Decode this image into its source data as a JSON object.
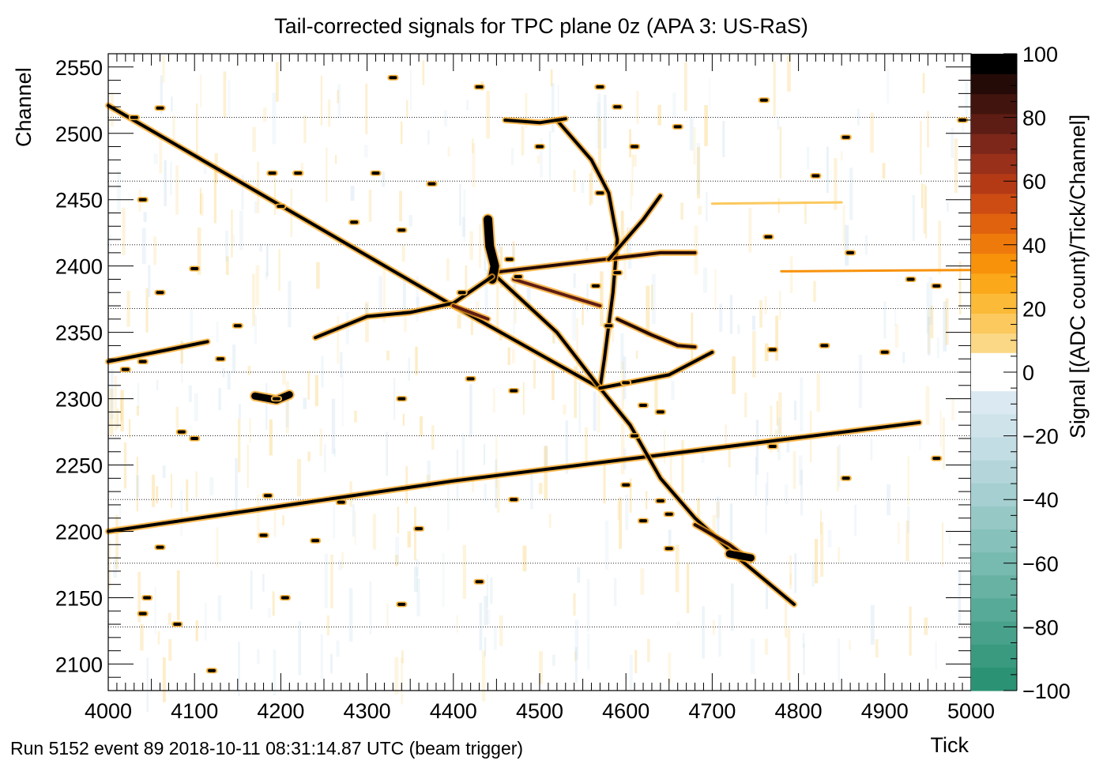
{
  "chart_data": {
    "type": "heatmap",
    "title": "Tail-corrected signals for TPC plane 0z (APA 3: US-RaS)",
    "xlabel": "Tick",
    "ylabel": "Channel",
    "zlabel": "Signal [(ADC count)/Tick/Channel]",
    "footer": "Run 5152 event 89 2018-10-11 08:31:14.87 UTC (beam trigger)",
    "xlim": [
      4000,
      5000
    ],
    "ylim": [
      2080,
      2560
    ],
    "zlim": [
      -100,
      100
    ],
    "x_ticks": [
      4000,
      4100,
      4200,
      4300,
      4400,
      4500,
      4600,
      4700,
      4800,
      4900,
      5000
    ],
    "y_ticks": [
      2100,
      2150,
      2200,
      2250,
      2300,
      2350,
      2400,
      2450,
      2500,
      2550
    ],
    "z_ticks": [
      -100,
      -80,
      -60,
      -40,
      -20,
      0,
      20,
      40,
      60,
      80,
      100
    ],
    "channel_boundaries": [
      2128,
      2176,
      2224,
      2272,
      2320,
      2368,
      2416,
      2464,
      2512
    ],
    "color_scale": {
      "positive": [
        "#fde8b0",
        "#fbd885",
        "#fbc95e",
        "#fbba38",
        "#fba81a",
        "#f8920b",
        "#ef7a0c",
        "#e0620f",
        "#cc4c13",
        "#b43a16",
        "#99301a",
        "#7c271a",
        "#5e1d14",
        "#41140d",
        "#250b07",
        "#000000"
      ],
      "negative": [
        "#dbe9f2",
        "#cfe3eb",
        "#c2dde3",
        "#b4d6da",
        "#a5cfd1",
        "#96c8c6",
        "#87c1bb",
        "#77baaf",
        "#67b2a3",
        "#57aa97",
        "#48a28b",
        "#399a7f",
        "#2b9273"
      ],
      "noise_positive": "#f8c54c",
      "noise_negative": "#bcd8ea"
    },
    "tracks": [
      {
        "points": [
          [
            4000,
            2521
          ],
          [
            4400,
            2370
          ],
          [
            4570,
            2308
          ]
        ],
        "intensity": 100
      },
      {
        "points": [
          [
            4000,
            2200
          ],
          [
            4400,
            2238
          ],
          [
            4940,
            2282
          ]
        ],
        "intensity": 100
      },
      {
        "points": [
          [
            4520,
            2510
          ],
          [
            4560,
            2480
          ],
          [
            4580,
            2455
          ],
          [
            4590,
            2420
          ],
          [
            4585,
            2380
          ],
          [
            4575,
            2330
          ],
          [
            4570,
            2308
          ]
        ],
        "intensity": 100
      },
      {
        "points": [
          [
            4570,
            2308
          ],
          [
            4605,
            2280
          ],
          [
            4640,
            2240
          ],
          [
            4680,
            2210
          ],
          [
            4730,
            2180
          ],
          [
            4795,
            2145
          ]
        ],
        "intensity": 100
      },
      {
        "points": [
          [
            4445,
            2395
          ],
          [
            4520,
            2350
          ],
          [
            4570,
            2308
          ]
        ],
        "intensity": 100
      },
      {
        "points": [
          [
            4445,
            2395
          ],
          [
            4640,
            2410
          ],
          [
            4680,
            2410
          ]
        ],
        "intensity": 90
      },
      {
        "points": [
          [
            4440,
            2435
          ],
          [
            4442,
            2415
          ],
          [
            4448,
            2400
          ],
          [
            4445,
            2390
          ]
        ],
        "intensity": 100,
        "width": 11
      },
      {
        "points": [
          [
            4445,
            2392
          ],
          [
            4400,
            2372
          ],
          [
            4350,
            2365
          ],
          [
            4300,
            2362
          ],
          [
            4240,
            2346
          ]
        ],
        "intensity": 100
      },
      {
        "points": [
          [
            4580,
            2405
          ],
          [
            4620,
            2435
          ],
          [
            4640,
            2453
          ]
        ],
        "intensity": 100
      },
      {
        "points": [
          [
            4570,
            2308
          ],
          [
            4650,
            2318
          ],
          [
            4700,
            2335
          ]
        ],
        "intensity": 100
      },
      {
        "points": [
          [
            4000,
            2328
          ],
          [
            4070,
            2337
          ],
          [
            4115,
            2343
          ]
        ],
        "intensity": 100
      },
      {
        "points": [
          [
            4460,
            2510
          ],
          [
            4500,
            2508
          ],
          [
            4530,
            2511
          ]
        ],
        "intensity": 100
      },
      {
        "points": [
          [
            4470,
            2390
          ],
          [
            4530,
            2378
          ],
          [
            4570,
            2370
          ]
        ],
        "intensity": 80
      },
      {
        "points": [
          [
            4590,
            2360
          ],
          [
            4630,
            2348
          ],
          [
            4660,
            2340
          ],
          [
            4680,
            2339
          ]
        ],
        "intensity": 90
      },
      {
        "points": [
          [
            4680,
            2205
          ],
          [
            4720,
            2190
          ],
          [
            4740,
            2180
          ]
        ],
        "intensity": 90
      },
      {
        "points": [
          [
            4720,
            2183
          ],
          [
            4745,
            2180
          ]
        ],
        "intensity": 100,
        "width": 9
      },
      {
        "points": [
          [
            4170,
            2302
          ],
          [
            4195,
            2299
          ],
          [
            4210,
            2303
          ]
        ],
        "intensity": 100,
        "width": 9
      },
      {
        "points": [
          [
            4400,
            2370
          ],
          [
            4440,
            2360
          ]
        ],
        "intensity": 80
      }
    ],
    "faint_tracks": [
      {
        "points": [
          [
            4780,
            2396
          ],
          [
            5000,
            2397
          ]
        ],
        "intensity": 35
      },
      {
        "points": [
          [
            4700,
            2447
          ],
          [
            4850,
            2448
          ]
        ],
        "intensity": 12
      }
    ],
    "blobs": [
      [
        4570,
        2535
      ],
      [
        4590,
        2520
      ],
      [
        4500,
        2490
      ],
      [
        4610,
        2490
      ],
      [
        4660,
        2505
      ],
      [
        4760,
        2525
      ],
      [
        4855,
        2497
      ],
      [
        4040,
        2450
      ],
      [
        4200,
        2445
      ],
      [
        4285,
        2433
      ],
      [
        4340,
        2427
      ],
      [
        4465,
        2405
      ],
      [
        4565,
        2385
      ],
      [
        4590,
        2395
      ],
      [
        4190,
        2470
      ],
      [
        4100,
        2398
      ],
      [
        4220,
        2470
      ],
      [
        4375,
        2462
      ],
      [
        4570,
        2455
      ],
      [
        4820,
        2468
      ],
      [
        4765,
        2422
      ],
      [
        4960,
        2385
      ],
      [
        4770,
        2337
      ],
      [
        4830,
        2340
      ],
      [
        4600,
        2312
      ],
      [
        4150,
        2355
      ],
      [
        4020,
        2322
      ],
      [
        4040,
        2328
      ],
      [
        4130,
        2330
      ],
      [
        4420,
        2315
      ],
      [
        4470,
        2306
      ],
      [
        4340,
        2300
      ],
      [
        4620,
        2295
      ],
      [
        4640,
        2290
      ],
      [
        4195,
        2300
      ],
      [
        4085,
        2275
      ],
      [
        4100,
        2270
      ],
      [
        4185,
        2227
      ],
      [
        4270,
        2222
      ],
      [
        4360,
        2202
      ],
      [
        4620,
        2208
      ],
      [
        4600,
        2235
      ],
      [
        4610,
        2272
      ],
      [
        4640,
        2223
      ],
      [
        4650,
        2213
      ],
      [
        4770,
        2264
      ],
      [
        4855,
        2240
      ],
      [
        4960,
        2255
      ],
      [
        4060,
        2188
      ],
      [
        4180,
        2197
      ],
      [
        4240,
        2193
      ],
      [
        4470,
        2224
      ],
      [
        4650,
        2187
      ],
      [
        4430,
        2162
      ],
      [
        4045,
        2150
      ],
      [
        4205,
        2150
      ],
      [
        4340,
        2145
      ],
      [
        4040,
        2138
      ],
      [
        4080,
        2130
      ],
      [
        4580,
        2355
      ],
      [
        4060,
        2380
      ],
      [
        4860,
        2410
      ],
      [
        4120,
        2095
      ],
      [
        4310,
        2470
      ],
      [
        4475,
        2392
      ],
      [
        4410,
        2380
      ],
      [
        4030,
        2512
      ],
      [
        4330,
        2542
      ],
      [
        4430,
        2535
      ],
      [
        4060,
        2519
      ],
      [
        4900,
        2335
      ],
      [
        4930,
        2390
      ],
      [
        4990,
        2510
      ]
    ]
  }
}
